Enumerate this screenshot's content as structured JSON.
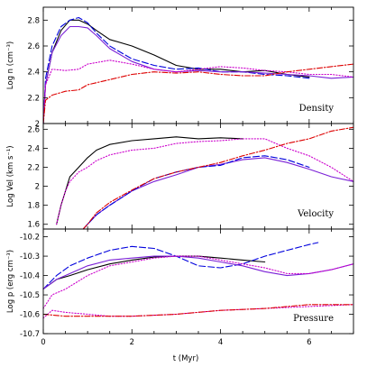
{
  "chart_data": {
    "type": "line",
    "xlabel": "t (Myr)",
    "xlim": [
      0,
      7
    ],
    "xticks": [
      0,
      2,
      4,
      6
    ],
    "colors": {
      "black": "#000000",
      "blue": "#0000dd",
      "magenta": "#cc00cc",
      "red": "#dd0000",
      "purple": "#7a1fd6"
    },
    "panels": [
      {
        "id": "density",
        "name": "Density",
        "ylabel": "Log n (cm⁻³)",
        "ylim": [
          2.0,
          2.9
        ],
        "yticks": [
          2,
          2.2,
          2.4,
          2.6,
          2.8
        ],
        "series": [
          {
            "color": "black",
            "dash": "solid",
            "x": [
              0,
              0.05,
              0.2,
              0.4,
              0.6,
              0.8,
              1.0,
              1.2,
              1.5,
              2.0,
              2.5,
              3.0,
              3.5,
              4.0,
              4.5,
              5.0,
              5.5,
              6.0
            ],
            "y": [
              2.0,
              2.3,
              2.55,
              2.72,
              2.8,
              2.8,
              2.77,
              2.72,
              2.65,
              2.6,
              2.53,
              2.45,
              2.42,
              2.42,
              2.4,
              2.41,
              2.38,
              2.36
            ]
          },
          {
            "color": "blue",
            "dash": "dashed",
            "x": [
              0,
              0.05,
              0.2,
              0.4,
              0.6,
              0.8,
              1.0,
              1.2,
              1.5,
              2.0,
              2.5,
              3.0,
              3.5,
              4.0,
              4.5,
              5.0,
              5.5,
              6.0
            ],
            "y": [
              2.0,
              2.35,
              2.6,
              2.75,
              2.8,
              2.82,
              2.78,
              2.7,
              2.6,
              2.5,
              2.45,
              2.42,
              2.43,
              2.4,
              2.4,
              2.38,
              2.37,
              2.35
            ]
          },
          {
            "color": "purple",
            "dash": "solid",
            "x": [
              0,
              0.05,
              0.2,
              0.4,
              0.6,
              0.8,
              1.0,
              1.2,
              1.5,
              2.0,
              2.5,
              3.0,
              3.5,
              4.0,
              4.5,
              5.0,
              5.5,
              6.0,
              6.5,
              7.0
            ],
            "y": [
              2.0,
              2.3,
              2.55,
              2.68,
              2.75,
              2.75,
              2.74,
              2.68,
              2.58,
              2.48,
              2.42,
              2.4,
              2.41,
              2.4,
              2.4,
              2.39,
              2.38,
              2.37,
              2.35,
              2.36
            ]
          },
          {
            "color": "magenta",
            "dash": "dotted",
            "x": [
              0,
              0.05,
              0.2,
              0.5,
              0.8,
              1.0,
              1.5,
              2.0,
              2.5,
              3.0,
              3.5,
              4.0,
              4.5,
              5.0,
              5.5,
              6.0,
              6.5,
              7.0
            ],
            "y": [
              2.0,
              2.3,
              2.42,
              2.41,
              2.42,
              2.46,
              2.49,
              2.46,
              2.42,
              2.4,
              2.42,
              2.44,
              2.43,
              2.41,
              2.4,
              2.38,
              2.38,
              2.36
            ]
          },
          {
            "color": "red",
            "dash": "dashdot",
            "x": [
              0,
              0.05,
              0.2,
              0.5,
              0.8,
              1.0,
              1.5,
              2.0,
              2.5,
              3.0,
              3.5,
              4.0,
              4.5,
              5.0,
              5.5,
              6.0,
              6.5,
              7.0
            ],
            "y": [
              2.0,
              2.18,
              2.22,
              2.25,
              2.26,
              2.3,
              2.34,
              2.38,
              2.4,
              2.39,
              2.4,
              2.38,
              2.37,
              2.37,
              2.4,
              2.42,
              2.44,
              2.46
            ]
          }
        ]
      },
      {
        "id": "velocity",
        "name": "Velocity",
        "ylabel": "Log Vel (km s⁻¹)",
        "ylim": [
          1.55,
          2.66
        ],
        "yticks": [
          1.6,
          1.8,
          2,
          2.2,
          2.4,
          2.6
        ],
        "series": [
          {
            "color": "black",
            "dash": "solid",
            "x": [
              0.3,
              0.4,
              0.5,
              0.6,
              0.8,
              1.0,
              1.2,
              1.5,
              2.0,
              2.5,
              3.0,
              3.5,
              4.0,
              4.5
            ],
            "y": [
              1.6,
              1.8,
              1.95,
              2.1,
              2.2,
              2.3,
              2.38,
              2.44,
              2.48,
              2.5,
              2.52,
              2.5,
              2.51,
              2.5
            ]
          },
          {
            "color": "magenta",
            "dash": "dotted",
            "x": [
              0.3,
              0.4,
              0.5,
              0.6,
              0.8,
              1.0,
              1.2,
              1.5,
              2.0,
              2.5,
              3.0,
              3.5,
              4.0,
              4.5,
              5.0,
              5.5,
              6.0,
              6.5,
              7.0
            ],
            "y": [
              1.6,
              1.8,
              1.95,
              2.05,
              2.15,
              2.2,
              2.27,
              2.33,
              2.38,
              2.4,
              2.45,
              2.47,
              2.48,
              2.5,
              2.5,
              2.4,
              2.32,
              2.2,
              2.05
            ]
          },
          {
            "color": "purple",
            "dash": "solid",
            "x": [
              0.9,
              1.0,
              1.2,
              1.5,
              2.0,
              2.5,
              3.0,
              3.5,
              4.0,
              4.5,
              5.0,
              5.5,
              6.0,
              6.5,
              7.0
            ],
            "y": [
              1.55,
              1.6,
              1.7,
              1.8,
              1.95,
              2.05,
              2.12,
              2.2,
              2.23,
              2.28,
              2.3,
              2.25,
              2.18,
              2.1,
              2.05
            ]
          },
          {
            "color": "blue",
            "dash": "dashed",
            "x": [
              0.9,
              1.0,
              1.2,
              1.5,
              2.0,
              2.5,
              3.0,
              3.5,
              4.0,
              4.5,
              5.0,
              5.5,
              6.0
            ],
            "y": [
              1.55,
              1.6,
              1.7,
              1.8,
              1.95,
              2.08,
              2.15,
              2.2,
              2.22,
              2.3,
              2.32,
              2.28,
              2.2
            ]
          },
          {
            "color": "red",
            "dash": "dashdot",
            "x": [
              0.9,
              1.0,
              1.2,
              1.5,
              2.0,
              2.5,
              3.0,
              3.5,
              4.0,
              4.5,
              5.0,
              5.5,
              6.0,
              6.5,
              7.0
            ],
            "y": [
              1.55,
              1.6,
              1.72,
              1.83,
              1.96,
              2.08,
              2.15,
              2.2,
              2.25,
              2.32,
              2.38,
              2.45,
              2.5,
              2.58,
              2.62
            ]
          }
        ]
      },
      {
        "id": "pressure",
        "name": "Pressure",
        "ylabel": "Log p (erg cm⁻³)",
        "ylim": [
          -10.7,
          -10.16
        ],
        "yticks": [
          -10.7,
          -10.6,
          -10.5,
          -10.4,
          -10.3,
          -10.2
        ],
        "series": [
          {
            "color": "black",
            "dash": "solid",
            "x": [
              0,
              0.3,
              0.6,
              1.0,
              1.5,
              2.0,
              2.5,
              3.0,
              3.5,
              4.0,
              4.5,
              5.0
            ],
            "y": [
              -10.47,
              -10.42,
              -10.4,
              -10.37,
              -10.34,
              -10.32,
              -10.305,
              -10.3,
              -10.3,
              -10.31,
              -10.32,
              -10.33
            ]
          },
          {
            "color": "blue",
            "dash": "dashed",
            "x": [
              0,
              0.3,
              0.6,
              1.0,
              1.5,
              2.0,
              2.5,
              3.0,
              3.5,
              4.0,
              4.5,
              5.0,
              5.5,
              6.0,
              6.2
            ],
            "y": [
              -10.47,
              -10.4,
              -10.35,
              -10.31,
              -10.27,
              -10.25,
              -10.26,
              -10.3,
              -10.35,
              -10.36,
              -10.34,
              -10.3,
              -10.27,
              -10.24,
              -10.23
            ]
          },
          {
            "color": "purple",
            "dash": "solid",
            "x": [
              0,
              0.3,
              0.6,
              1.0,
              1.5,
              2.0,
              2.5,
              3.0,
              3.5,
              4.0,
              4.5,
              5.0,
              5.5,
              6.0,
              6.5,
              7.0
            ],
            "y": [
              -10.47,
              -10.42,
              -10.39,
              -10.35,
              -10.32,
              -10.31,
              -10.3,
              -10.3,
              -10.31,
              -10.33,
              -10.35,
              -10.38,
              -10.4,
              -10.39,
              -10.37,
              -10.34
            ]
          },
          {
            "color": "magenta",
            "dash": "dotted",
            "x": [
              0,
              0.2,
              0.5,
              1.0,
              1.5,
              2.0,
              2.5,
              3.0,
              3.5,
              4.0,
              4.5,
              5.0,
              5.5,
              6.0,
              6.5,
              7.0
            ],
            "y": [
              -10.57,
              -10.5,
              -10.47,
              -10.4,
              -10.35,
              -10.33,
              -10.31,
              -10.3,
              -10.3,
              -10.32,
              -10.34,
              -10.36,
              -10.39,
              -10.39,
              -10.37,
              -10.34
            ]
          },
          {
            "color": "magenta",
            "dash": "dotted",
            "x": [
              0,
              0.2,
              0.5,
              1.0,
              1.5,
              2.0,
              3.0,
              4.0,
              5.0,
              6.0,
              7.0
            ],
            "y": [
              -10.62,
              -10.58,
              -10.59,
              -10.6,
              -10.61,
              -10.61,
              -10.6,
              -10.58,
              -10.57,
              -10.56,
              -10.55
            ]
          },
          {
            "color": "red",
            "dash": "dashdot",
            "x": [
              0,
              0.5,
              1.0,
              2.0,
              3.0,
              4.0,
              5.0,
              6.0,
              6.5,
              7.0
            ],
            "y": [
              -10.6,
              -10.61,
              -10.61,
              -10.61,
              -10.6,
              -10.58,
              -10.57,
              -10.55,
              -10.55,
              -10.55
            ]
          }
        ]
      }
    ]
  }
}
